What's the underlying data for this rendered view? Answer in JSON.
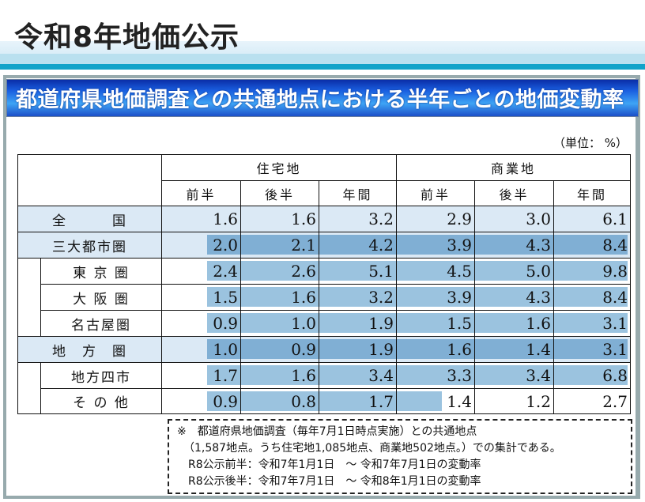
{
  "page": {
    "title": "令和8年地価公示",
    "section_title": "都道府県地価調査との共通地点における半年ごとの地価変動率",
    "unit_label": "（単位： %）"
  },
  "table": {
    "column_groups": [
      {
        "label": "住宅地",
        "columns": [
          "前半",
          "後半",
          "年間"
        ]
      },
      {
        "label": "商業地",
        "columns": [
          "前半",
          "後半",
          "年間"
        ]
      }
    ],
    "rows": [
      {
        "label": "全　　　国",
        "level": "group",
        "values": [
          "1.6",
          "1.6",
          "3.2",
          "2.9",
          "3.0",
          "6.1"
        ]
      },
      {
        "label": "三大都市圏",
        "level": "group",
        "values": [
          "2.0",
          "2.1",
          "4.2",
          "3.9",
          "4.3",
          "8.4"
        ]
      },
      {
        "label": "東 京 圏",
        "level": "sub",
        "values": [
          "2.4",
          "2.6",
          "5.1",
          "4.5",
          "5.0",
          "9.8"
        ]
      },
      {
        "label": "大 阪 圏",
        "level": "sub",
        "values": [
          "1.5",
          "1.6",
          "3.2",
          "3.9",
          "4.3",
          "8.4"
        ]
      },
      {
        "label": "名古屋圏",
        "level": "sub",
        "values": [
          "0.9",
          "1.0",
          "1.9",
          "1.5",
          "1.6",
          "3.1"
        ]
      },
      {
        "label": "地　方　圏",
        "level": "group",
        "values": [
          "1.0",
          "0.9",
          "1.9",
          "1.6",
          "1.4",
          "3.1"
        ]
      },
      {
        "label": "地方四市",
        "level": "sub",
        "values": [
          "1.7",
          "1.6",
          "3.4",
          "3.3",
          "3.4",
          "6.8"
        ]
      },
      {
        "label": "そ の 他",
        "level": "sub",
        "values": [
          "0.9",
          "0.8",
          "1.7",
          "1.4",
          "1.2",
          "2.7"
        ]
      }
    ]
  },
  "highlight": {
    "dark_color": "#80afd4",
    "light_color": "#9bc3df",
    "group_bg": "#dbe9f5"
  },
  "note": {
    "lines": [
      "※　都道府県地価調査（毎年7月1日時点実施）との共通地点",
      "（1,587地点。うち住宅地1,085地点、商業地502地点。）での集計である。",
      "R8公示前半：令和7年1月1日　～ 令和7年7月1日の変動率",
      "R8公示後半：令和7年7月1日　～ 令和8年1月1日の変動率"
    ]
  }
}
